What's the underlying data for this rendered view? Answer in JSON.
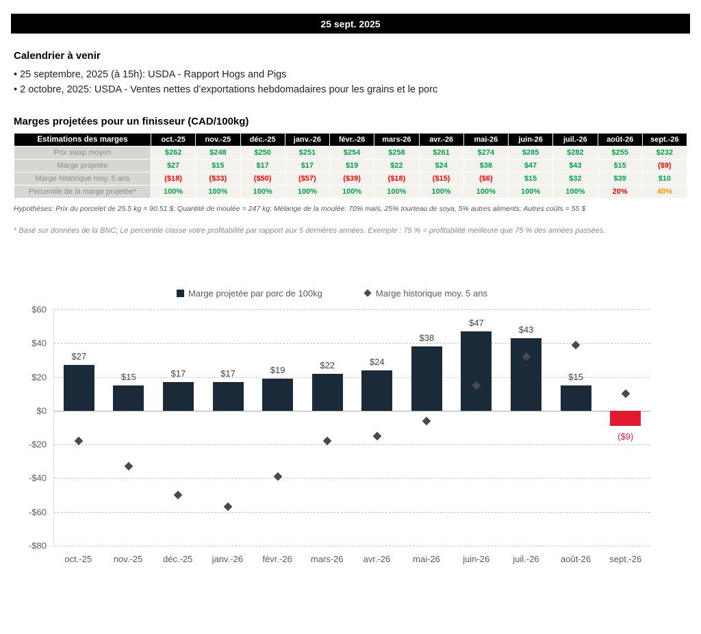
{
  "page": {
    "banner_date": "25 sept. 2025"
  },
  "calendar": {
    "title": "Calendrier à venir",
    "items": [
      "25 septembre, 2025 (à 15h): USDA - Rapport Hogs and Pigs",
      "2 octobre, 2025: USDA - Ventes nettes d’exportations hebdomadaires pour les grains et le porc"
    ]
  },
  "margins": {
    "title": "Marges projetées pour un finisseur (CAD/100kg)",
    "table": {
      "corner_header": "Estimations des marges",
      "months": [
        "oct.-25",
        "nov.-25",
        "déc.-25",
        "janv.-26",
        "févr.-26",
        "mars-26",
        "avr.-26",
        "mai-26",
        "juin-26",
        "juil.-26",
        "août-26",
        "sept.-26"
      ],
      "rows": [
        {
          "label": "Prix swap moyen",
          "values": [
            "$262",
            "$248",
            "$250",
            "$251",
            "$254",
            "$258",
            "$261",
            "$274",
            "$285",
            "$282",
            "$255",
            "$232"
          ],
          "colors": [
            "green",
            "green",
            "green",
            "green",
            "green",
            "green",
            "green",
            "green",
            "green",
            "green",
            "green",
            "green"
          ]
        },
        {
          "label": "Marge projetée",
          "values": [
            "$27",
            "$15",
            "$17",
            "$17",
            "$19",
            "$22",
            "$24",
            "$38",
            "$47",
            "$43",
            "$15",
            "($9)"
          ],
          "colors": [
            "green",
            "green",
            "green",
            "green",
            "green",
            "green",
            "green",
            "green",
            "green",
            "green",
            "green",
            "red"
          ]
        },
        {
          "label": "Marge historique moy. 5 ans",
          "values": [
            "($18)",
            "($33)",
            "($50)",
            "($57)",
            "($39)",
            "($18)",
            "($15)",
            "($6)",
            "$15",
            "$32",
            "$39",
            "$10"
          ],
          "colors": [
            "red",
            "red",
            "red",
            "red",
            "red",
            "red",
            "red",
            "red",
            "green",
            "green",
            "green",
            "green"
          ]
        },
        {
          "label": "Percentile de la marge projetée*",
          "values": [
            "100%",
            "100%",
            "100%",
            "100%",
            "100%",
            "100%",
            "100%",
            "100%",
            "100%",
            "100%",
            "20%",
            "40%"
          ],
          "colors": [
            "green",
            "green",
            "green",
            "green",
            "green",
            "green",
            "green",
            "green",
            "green",
            "green",
            "red",
            "orange"
          ]
        }
      ],
      "palette": {
        "green": "#00a14f",
        "red": "#fe0000",
        "orange": "#ff9300"
      }
    },
    "assumptions": "Hypothèses: Prix du porcelet de 25.5 kg = 90.51 $; Quantité de moulée = 247 kg; Mélange de la moulée: 70% maïs, 25% tourteau de soya, 5% autres aliments; Autres coûts = 55 $",
    "footnote": "* Basé sur données de la BNC; Le percentile classe votre profitabilité par rapport aux 5 dernières années. Exemple : 75 % = profitabilité meilleure que 75 % des années passées."
  },
  "chart_data": {
    "type": "bar",
    "categories": [
      "oct.-25",
      "nov.-25",
      "déc.-25",
      "janv.-26",
      "févr.-26",
      "mars-26",
      "avr.-26",
      "mai-26",
      "juin-26",
      "juil.-26",
      "août-26",
      "sept.-26"
    ],
    "series": [
      {
        "name": "Marge projetée par porc de 100kg",
        "type": "bar",
        "values": [
          27,
          15,
          17,
          17,
          19,
          22,
          24,
          38,
          47,
          43,
          15,
          -9
        ],
        "labels": [
          "$27",
          "$15",
          "$17",
          "$17",
          "$19",
          "$22",
          "$24",
          "$38",
          "$47",
          "$43",
          "$15",
          "($9)"
        ]
      },
      {
        "name": "Marge historique moy. 5 ans",
        "type": "scatter",
        "marker": "diamond",
        "values": [
          -18,
          -33,
          -50,
          -57,
          -39,
          -18,
          -15,
          -6,
          15,
          32,
          39,
          10
        ]
      }
    ],
    "ylim": [
      -80,
      60
    ],
    "yticks": [
      {
        "v": 60,
        "label": "$60"
      },
      {
        "v": 40,
        "label": "$40"
      },
      {
        "v": 20,
        "label": "$20"
      },
      {
        "v": 0,
        "label": "$0"
      },
      {
        "v": -20,
        "label": "-$20"
      },
      {
        "v": -40,
        "label": "-$40"
      },
      {
        "v": -60,
        "label": "-$60"
      },
      {
        "v": -80,
        "label": "-$80"
      }
    ],
    "grid": "dashed-horizontal",
    "legend_position": "top",
    "colors": {
      "bar": "#1b2a38",
      "bar_negative": "#e11b2d",
      "diamond": "#4a4a4a"
    }
  }
}
